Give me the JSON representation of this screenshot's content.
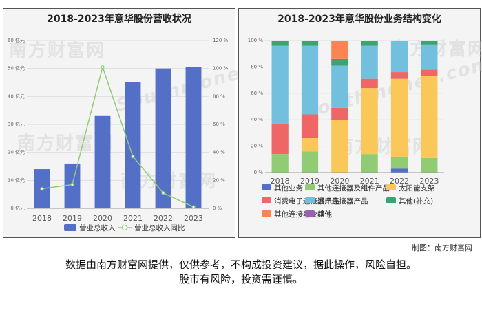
{
  "credit": "制图：南方财富网",
  "watermarks": {
    "brand_cn": "南方财富网",
    "brand_en": "Southmoney.com"
  },
  "disclaimer": {
    "line1": "数据由南方财富网提供，仅供参考，不构成投资建议，据此操作，风险自担。",
    "line2": "股市有风险，投资需谨慎。"
  },
  "chart_data": [
    {
      "type": "bar",
      "title": "2018-2023年意华股份营收状况",
      "categories": [
        "2018",
        "2019",
        "2020",
        "2021",
        "2022",
        "2023"
      ],
      "y_ticks": [
        "0 亿元",
        "10 亿元",
        "20 亿元",
        "30 亿元",
        "40 亿元",
        "50 亿元",
        "60 亿元"
      ],
      "y2_ticks": [
        "0 %",
        "20 %",
        "40 %",
        "60 %",
        "80 %",
        "100 %",
        "120 %"
      ],
      "ylim": [
        0,
        60
      ],
      "y2lim": [
        0,
        120
      ],
      "series": [
        {
          "name": "营业总收入",
          "type": "bar",
          "axis": "left",
          "values": [
            14,
            16,
            33,
            45,
            50,
            50.5
          ]
        },
        {
          "name": "营业总收入同比",
          "type": "line",
          "axis": "right",
          "values": [
            14,
            17,
            101,
            37,
            11,
            1
          ]
        }
      ],
      "colors": {
        "bar": "#5470c6",
        "line": "#91cc75",
        "grid": "#dddddd"
      },
      "grid": true,
      "legend_position": "bottom"
    },
    {
      "type": "bar",
      "stacked": true,
      "title": "2018-2023年意华股份业务结构变化",
      "categories": [
        "2018",
        "2019",
        "2020",
        "2021",
        "2022",
        "2023"
      ],
      "y_ticks": [
        "0 %",
        "20 %",
        "40 %",
        "60 %",
        "80 %",
        "100 %"
      ],
      "ylim": [
        0,
        100
      ],
      "series": [
        {
          "name": "其他业务",
          "color": "#5470c6",
          "values": [
            0,
            0,
            0,
            0,
            3,
            0
          ]
        },
        {
          "name": "其他连接器及组件产品",
          "color": "#91cc75",
          "values": [
            14,
            16,
            0,
            14,
            9,
            11
          ]
        },
        {
          "name": "太阳能支架",
          "color": "#fac858",
          "values": [
            0,
            10,
            40,
            50,
            59,
            62
          ]
        },
        {
          "name": "消费电子连接器产品",
          "color": "#ee6666",
          "values": [
            23,
            18,
            9,
            7,
            5,
            5
          ]
        },
        {
          "name": "通讯连接器产品",
          "color": "#73c0de",
          "values": [
            59,
            52,
            32,
            25,
            24,
            19
          ]
        },
        {
          "name": "其他(补充)",
          "color": "#3ba272",
          "values": [
            4,
            4,
            5,
            4,
            0,
            3
          ]
        },
        {
          "name": "其他连接器及组件",
          "color": "#fc8452",
          "values": [
            0,
            0,
            14,
            0,
            0,
            0
          ]
        },
        {
          "name": "其他",
          "color": "#9a60b4",
          "values": [
            0,
            0,
            0,
            0,
            0,
            0
          ]
        }
      ],
      "grid": true,
      "legend_position": "bottom"
    }
  ]
}
